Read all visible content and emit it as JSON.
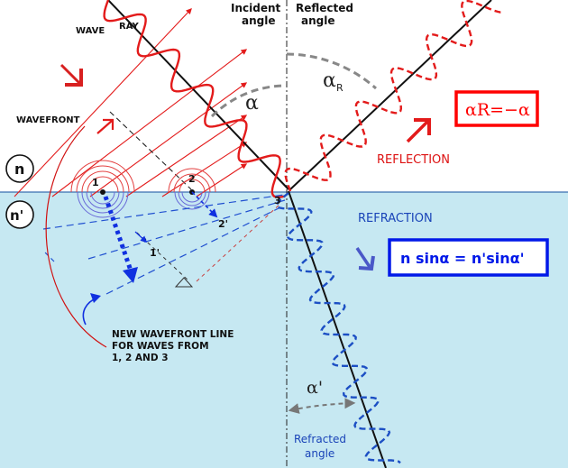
{
  "labels": {
    "wave": "WAVE",
    "ray": "RAY",
    "wavefront": "WAVEFRONT",
    "incident_1": "Incident",
    "incident_2": "angle",
    "reflected_1": "Reflected",
    "reflected_2": "angle",
    "alpha": "α",
    "alpha_r": "α",
    "alpha_r_sub": "R",
    "reflection": "REFLECTION",
    "refraction": "REFRACTION",
    "n": "n",
    "n_prime": "n'",
    "p1": "1",
    "p2": "2",
    "p3": "3",
    "p1p": "1'",
    "p2p": "2'",
    "new_wf_1": "NEW WAVEFRONT LINE",
    "new_wf_2": "FOR WAVES FROM",
    "new_wf_3": "1, 2 AND 3",
    "alpha_prime": "α'",
    "refracted_1": "Refracted",
    "refracted_2": "angle"
  },
  "formulas": {
    "reflection_law": "αR=−α",
    "snell_law": "n sinα = n'sinα'"
  },
  "colors": {
    "medium_n_prime": "#c6e8f2",
    "wave_red": "#e31b1b",
    "wave_blue": "#1c4fc4",
    "wavefront_blue": "#2050d0",
    "formula_red": "#ff0000",
    "formula_blue": "#0018e8",
    "arc_grey": "#888888",
    "label_red": "#dd1111",
    "label_blue": "#1a44b8"
  }
}
